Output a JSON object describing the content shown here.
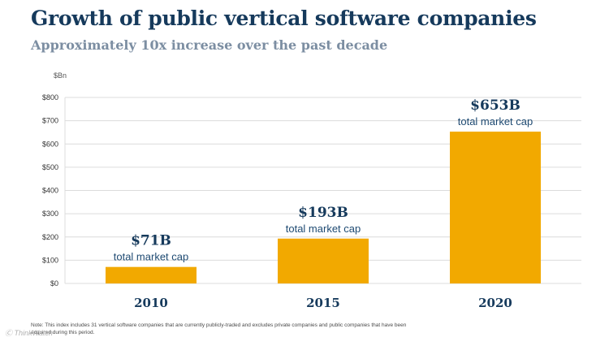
{
  "header": {
    "title": "Growth of public vertical software companies",
    "subtitle": "Approximately 10x increase over the past decade"
  },
  "chart_data": {
    "type": "bar",
    "unit_label": "$Bn",
    "categories": [
      "2010",
      "2015",
      "2020"
    ],
    "values": [
      71,
      193,
      653
    ],
    "yticks": [
      "$800",
      "$700",
      "$600",
      "$500",
      "$400",
      "$300",
      "$200",
      "$100",
      "$0"
    ],
    "ylim": [
      0,
      800
    ],
    "bar_labels": [
      "$71B",
      "$193B",
      "$653B"
    ],
    "bar_sublabel": "total market cap",
    "grid": true,
    "colors": {
      "bar": "#f2a900",
      "grid": "#dcdcdc",
      "value_label": "#163a5c",
      "sublabel": "#1e4a72"
    }
  },
  "footer": {
    "note": "Note: This index includes 31 vertical software companies that are currently publicly-traded and excludes private companies and public companies that have been acquired during this period.",
    "watermark": "Ⓒ ThinkWatch"
  }
}
